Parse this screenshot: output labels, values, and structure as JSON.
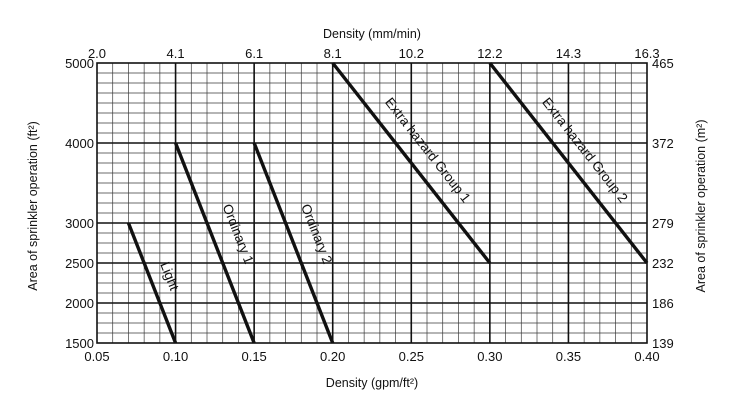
{
  "chart_data": {
    "type": "line",
    "xlabel": "Density (gpm/ft²)",
    "x2label": "Density (mm/min)",
    "ylabel": "Area of sprinkler operation (ft²)",
    "y2label": "Area of sprinkler operation (m²)",
    "xlim": [
      0.05,
      0.4
    ],
    "ylim": [
      1500,
      5000
    ],
    "grid": true,
    "x_ticks": [
      0.05,
      0.1,
      0.15,
      0.2,
      0.25,
      0.3,
      0.35,
      0.4
    ],
    "x_tick_labels": [
      "0.05",
      "0.10",
      "0.15",
      "0.20",
      "0.25",
      "0.30",
      "0.35",
      "0.40"
    ],
    "x2_tick_labels": [
      "2.0",
      "4.1",
      "6.1",
      "8.1",
      "10.2",
      "12.2",
      "14.3",
      "16.3"
    ],
    "y_ticks": [
      1500,
      2000,
      2500,
      3000,
      4000,
      5000
    ],
    "y_tick_labels": [
      "1500",
      "2000",
      "2500",
      "3000",
      "4000",
      "5000"
    ],
    "y2_tick_labels": [
      "139",
      "186",
      "232",
      "279",
      "372",
      "465"
    ],
    "series": [
      {
        "name": "Light",
        "x": [
          0.07,
          0.1
        ],
        "y": [
          3000,
          1500
        ]
      },
      {
        "name": "Ordinary 1",
        "x": [
          0.1,
          0.15
        ],
        "y": [
          4000,
          1500
        ]
      },
      {
        "name": "Ordinary 2",
        "x": [
          0.15,
          0.2
        ],
        "y": [
          4000,
          1500
        ]
      },
      {
        "name": "Extra hazard Group 1",
        "x": [
          0.2,
          0.3
        ],
        "y": [
          5000,
          2500
        ]
      },
      {
        "name": "Extra hazard Group 2",
        "x": [
          0.3,
          0.4
        ],
        "y": [
          5000,
          2500
        ]
      }
    ],
    "line_color": "#111111",
    "grid_color": "#222222"
  }
}
